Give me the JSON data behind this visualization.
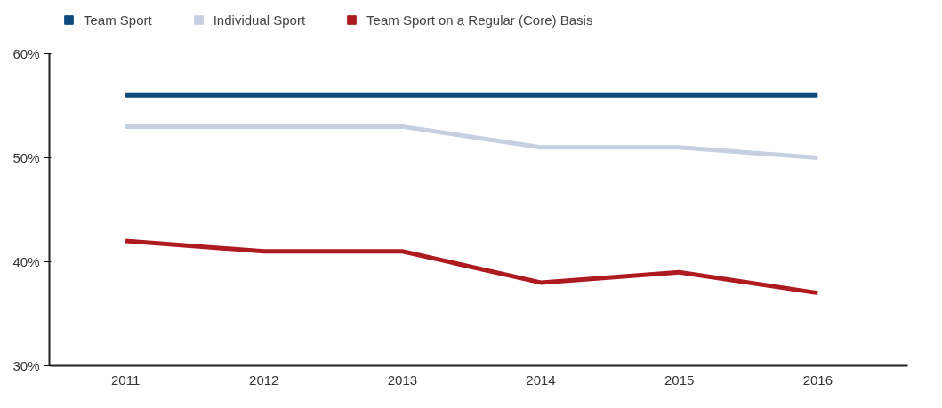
{
  "chart_data": {
    "type": "line",
    "categories": [
      "2011",
      "2012",
      "2013",
      "2014",
      "2015",
      "2016"
    ],
    "series": [
      {
        "name": "Team Sport",
        "color": "#0d4a7e",
        "values": [
          56,
          56,
          56,
          56,
          56,
          56
        ]
      },
      {
        "name": "Individual Sport",
        "color": "#c5cfe2",
        "values": [
          53,
          53,
          53,
          51,
          51,
          50
        ]
      },
      {
        "name": "Team Sport on a Regular (Core) Basis",
        "color": "#ad1a1f",
        "values": [
          42,
          41,
          41,
          38,
          39,
          37
        ]
      }
    ],
    "ylim": [
      30,
      60
    ],
    "yticks": [
      {
        "value": 30,
        "label": "30%"
      },
      {
        "value": 40,
        "label": "40%"
      },
      {
        "value": 50,
        "label": "50%"
      },
      {
        "value": 60,
        "label": "60%"
      }
    ],
    "grid": false,
    "legend": "top left",
    "marker": "none",
    "line_style": "solid"
  }
}
